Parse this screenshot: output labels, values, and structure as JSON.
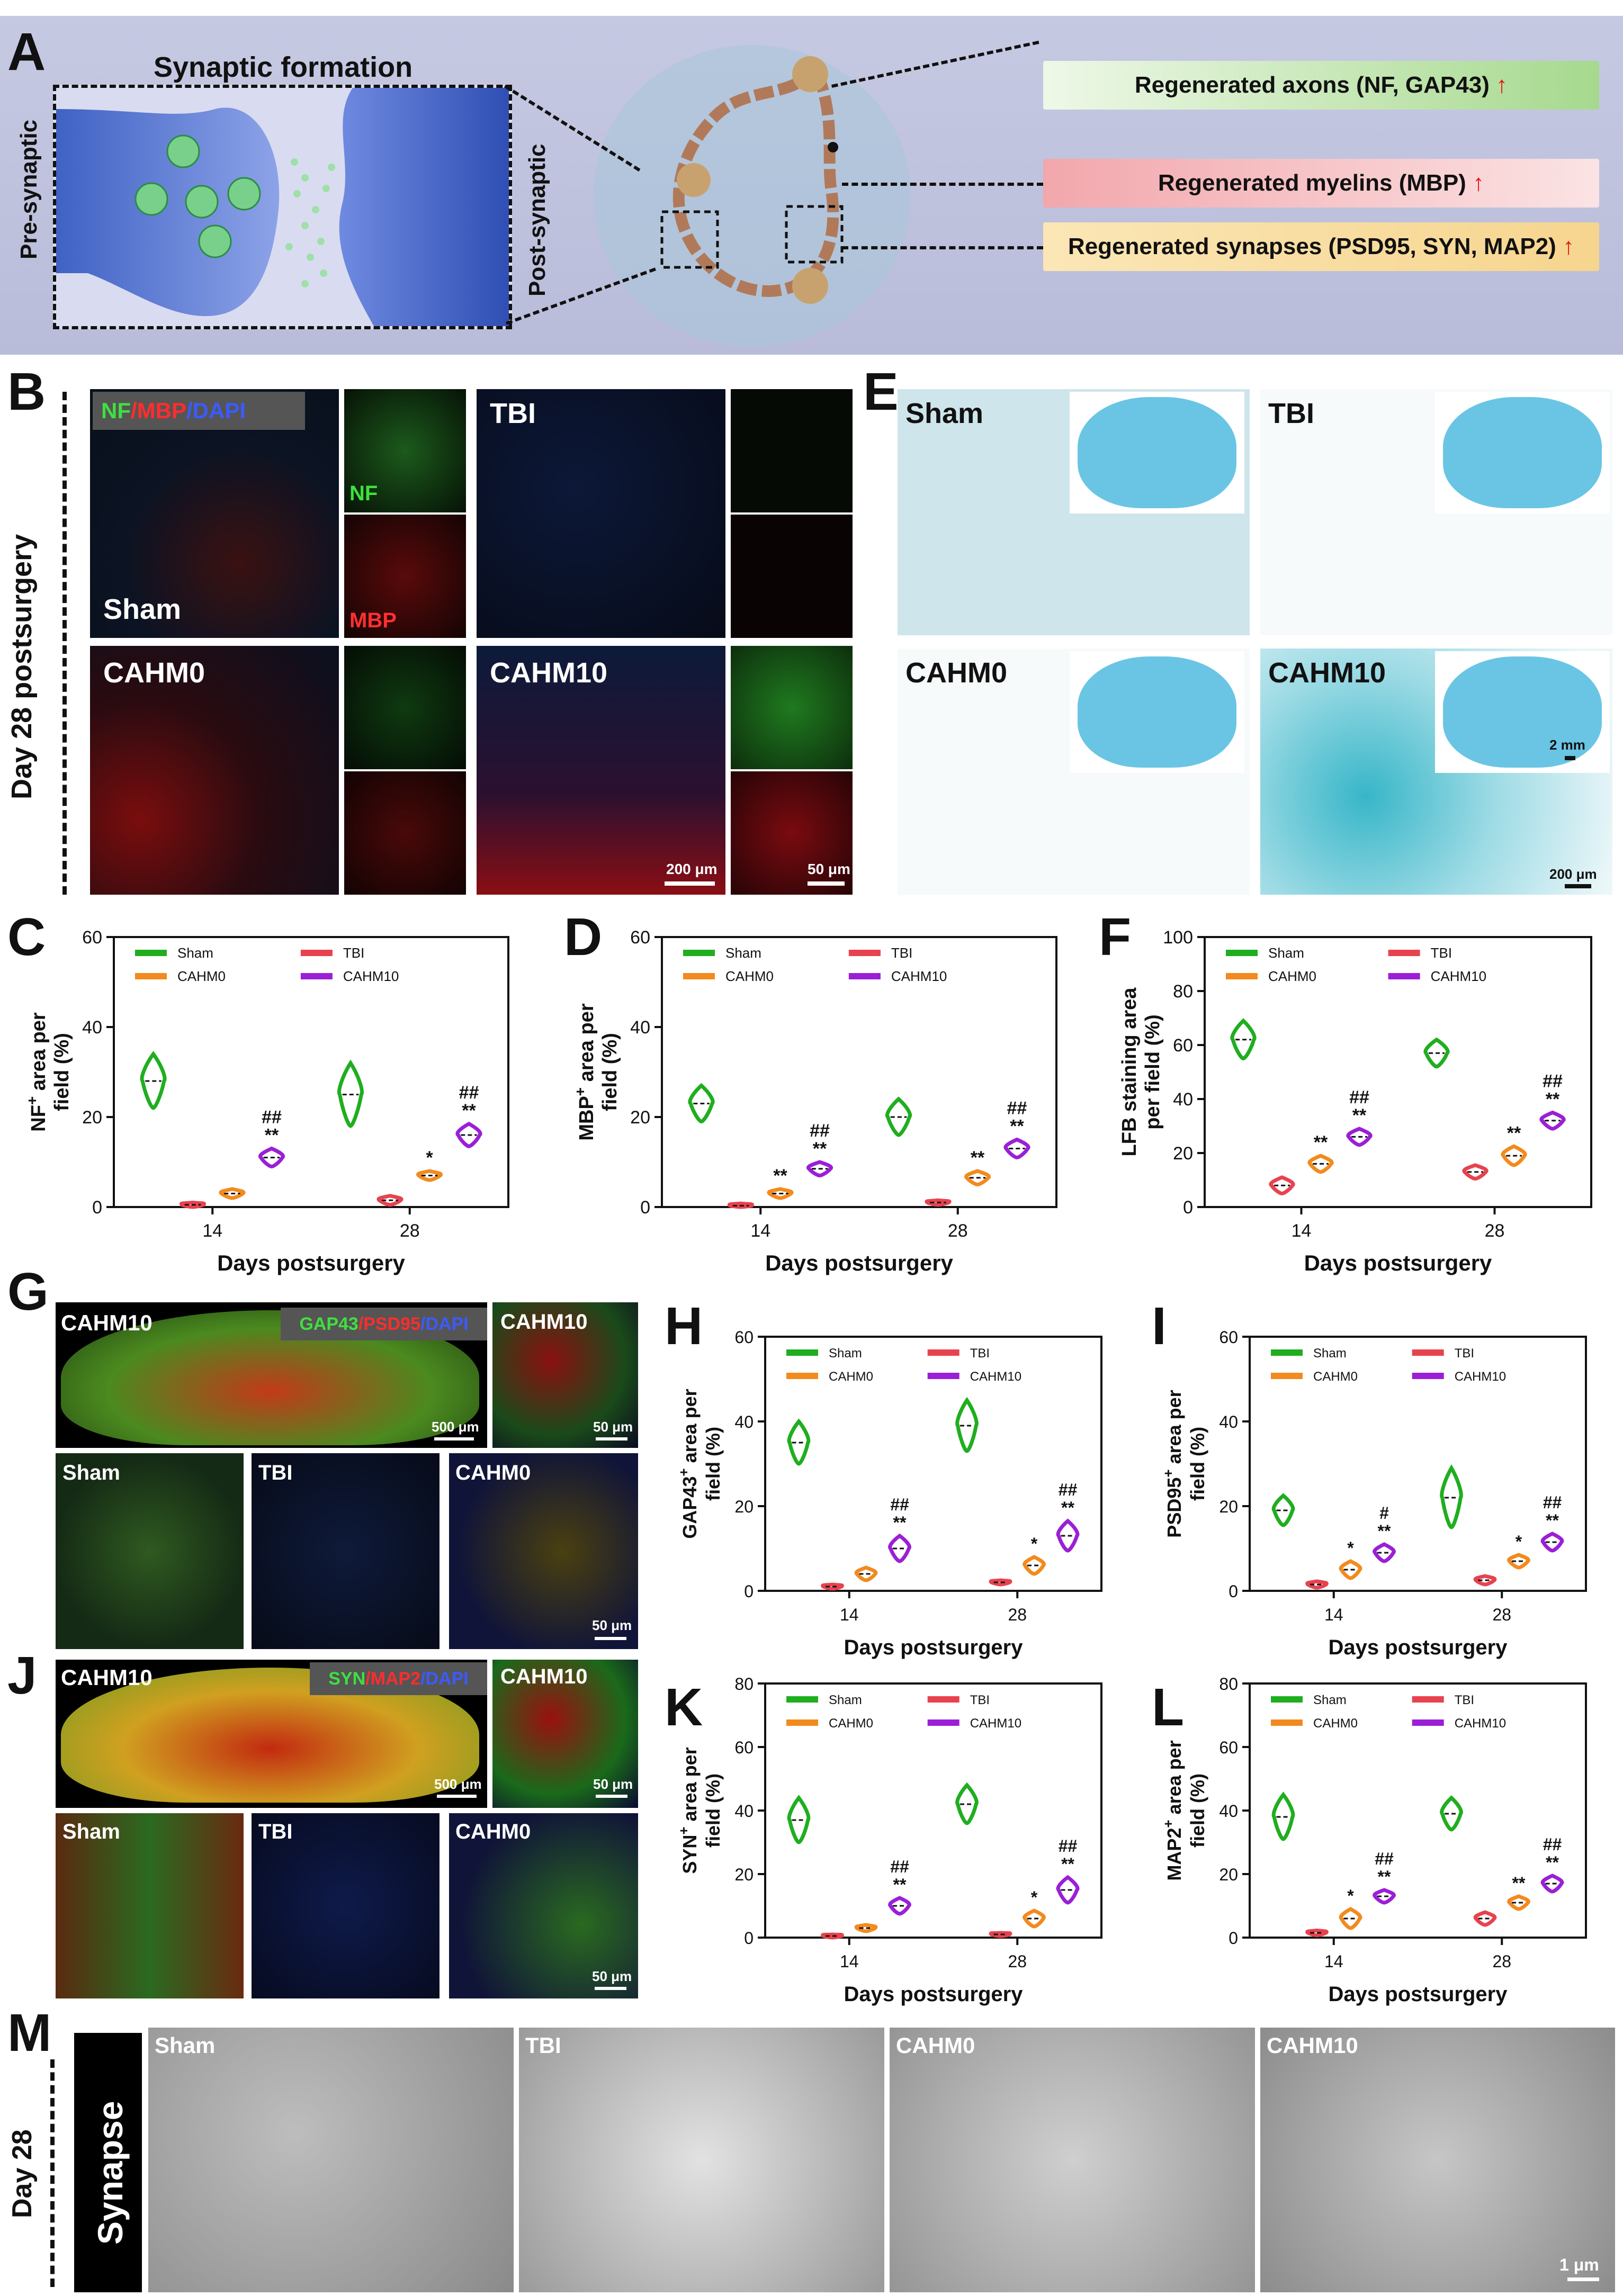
{
  "panels": {
    "A": "A",
    "B": "B",
    "C": "C",
    "D": "D",
    "E": "E",
    "F": "F",
    "G": "G",
    "H": "H",
    "I": "I",
    "J": "J",
    "K": "K",
    "L": "L",
    "M": "M"
  },
  "panelA": {
    "title": "Synaptic formation",
    "pre": "Pre-synaptic",
    "post": "Post-synaptic",
    "boxes": [
      {
        "text": "Regenerated axons (NF, GAP43)",
        "color": "#cfe9c4"
      },
      {
        "text": "Regenerated myelins (MBP)",
        "color": "#f6c7c8"
      },
      {
        "text": "Regenerated synapses (PSD95, SYN, MAP2)",
        "color": "#fbe1ad"
      }
    ],
    "arrow": "↑"
  },
  "panelB": {
    "side_label": "Day 28 postsurgery",
    "stain": {
      "nf": "NF",
      "mbp": "/MBP",
      "dapi": "/DAPI"
    },
    "groups": [
      "Sham",
      "TBI",
      "CAHM0",
      "CAHM10"
    ],
    "inset_nf": "NF",
    "inset_mbp": "MBP",
    "scale_big": "200 μm",
    "scale_small": "50 μm"
  },
  "panelE": {
    "groups": [
      "Sham",
      "TBI",
      "CAHM0",
      "CAHM10"
    ],
    "scale_big": "2 mm",
    "scale_small": "200 μm"
  },
  "panelG": {
    "top": "CAHM10",
    "stain": {
      "a": "GAP43",
      "b": "/PSD95",
      "c": "/DAPI"
    },
    "scale_big": "500 μm",
    "inset": "CAHM10",
    "scale_small": "50 μm",
    "bottom": [
      "Sham",
      "TBI",
      "CAHM0"
    ],
    "scale_bottom": "50 μm"
  },
  "panelJ": {
    "top": "CAHM10",
    "stain": {
      "a": "SYN",
      "b": "/MAP2",
      "c": "/DAPI"
    },
    "scale_big": "500 μm",
    "inset": "CAHM10",
    "scale_small": "50 μm",
    "bottom": [
      "Sham",
      "TBI",
      "CAHM0"
    ],
    "scale_bottom": "50 μm"
  },
  "panelM": {
    "side_day": "Day 28",
    "side_label": "Synapse",
    "groups": [
      "Sham",
      "TBI",
      "CAHM0",
      "CAHM10"
    ],
    "scale": "1 μm"
  },
  "colors": {
    "Sham": "#1fae1f",
    "TBI": "#e8424f",
    "CAHM0": "#f28a1e",
    "CAHM10": "#9b1fd6"
  },
  "chart_data": [
    {
      "id": "C",
      "type": "violin",
      "ylabel_pre": "NF",
      "ylabel_sup": "+",
      "ylabel_post": " area per",
      "ylabel2": "field (%)",
      "xlabel": "Days postsurgery",
      "ylim": [
        0,
        60
      ],
      "yticks": [
        0,
        20,
        40,
        60
      ],
      "categories": [
        "14",
        "28"
      ],
      "legend": [
        "Sham",
        "CAHM0",
        "TBI",
        "CAHM10"
      ],
      "series": [
        {
          "name": "Sham",
          "values": [
            28,
            25
          ],
          "spread": [
            12,
            14
          ]
        },
        {
          "name": "TBI",
          "values": [
            0.5,
            1.5
          ],
          "spread": [
            1,
            2
          ]
        },
        {
          "name": "CAHM0",
          "values": [
            3,
            7
          ],
          "spread": [
            2,
            2
          ]
        },
        {
          "name": "CAHM10",
          "values": [
            11,
            16
          ],
          "spread": [
            4,
            5
          ]
        }
      ],
      "annotations": [
        {
          "cat": 1,
          "series": "CAHM0",
          "text": [
            "*"
          ]
        },
        {
          "cat": 0,
          "series": "CAHM10",
          "text": [
            "##",
            "**"
          ]
        },
        {
          "cat": 1,
          "series": "CAHM10",
          "text": [
            "##",
            "**"
          ]
        }
      ]
    },
    {
      "id": "D",
      "type": "violin",
      "ylabel_pre": "MBP",
      "ylabel_sup": "+",
      "ylabel_post": " area per",
      "ylabel2": "field (%)",
      "xlabel": "Days postsurgery",
      "ylim": [
        0,
        60
      ],
      "yticks": [
        0,
        20,
        40,
        60
      ],
      "categories": [
        "14",
        "28"
      ],
      "legend": [
        "Sham",
        "CAHM0",
        "TBI",
        "CAHM10"
      ],
      "series": [
        {
          "name": "Sham",
          "values": [
            23,
            20
          ],
          "spread": [
            8,
            8
          ]
        },
        {
          "name": "TBI",
          "values": [
            0.3,
            1
          ],
          "spread": [
            1,
            1
          ]
        },
        {
          "name": "CAHM0",
          "values": [
            3,
            6.5
          ],
          "spread": [
            2,
            3
          ]
        },
        {
          "name": "CAHM10",
          "values": [
            8.5,
            13
          ],
          "spread": [
            3,
            4
          ]
        }
      ],
      "annotations": [
        {
          "cat": 0,
          "series": "CAHM0",
          "text": [
            "**"
          ]
        },
        {
          "cat": 1,
          "series": "CAHM0",
          "text": [
            "**"
          ]
        },
        {
          "cat": 0,
          "series": "CAHM10",
          "text": [
            "##",
            "**"
          ]
        },
        {
          "cat": 1,
          "series": "CAHM10",
          "text": [
            "##",
            "**"
          ]
        }
      ]
    },
    {
      "id": "F",
      "type": "violin",
      "ylabel_pre": "LFB staining  area",
      "ylabel_sup": "",
      "ylabel_post": "",
      "ylabel2": "per field (%)",
      "xlabel": "Days postsurgery",
      "ylim": [
        0,
        100
      ],
      "yticks": [
        0,
        20,
        40,
        60,
        80,
        100
      ],
      "categories": [
        "14",
        "28"
      ],
      "legend": [
        "Sham",
        "CAHM0",
        "TBI",
        "CAHM10"
      ],
      "series": [
        {
          "name": "Sham",
          "values": [
            62,
            57
          ],
          "spread": [
            14,
            10
          ]
        },
        {
          "name": "TBI",
          "values": [
            8,
            13
          ],
          "spread": [
            6,
            5
          ]
        },
        {
          "name": "CAHM0",
          "values": [
            16,
            19
          ],
          "spread": [
            6,
            7
          ]
        },
        {
          "name": "CAHM10",
          "values": [
            26,
            32
          ],
          "spread": [
            6,
            6
          ]
        }
      ],
      "annotations": [
        {
          "cat": 0,
          "series": "CAHM0",
          "text": [
            "**"
          ]
        },
        {
          "cat": 1,
          "series": "CAHM0",
          "text": [
            "**"
          ]
        },
        {
          "cat": 0,
          "series": "CAHM10",
          "text": [
            "##",
            "**"
          ]
        },
        {
          "cat": 1,
          "series": "CAHM10",
          "text": [
            "##",
            "**"
          ]
        }
      ]
    },
    {
      "id": "H",
      "type": "violin",
      "ylabel_pre": "GAP43",
      "ylabel_sup": "+",
      "ylabel_post": " area per",
      "ylabel2": "field (%)",
      "xlabel": "Days postsurgery",
      "ylim": [
        0,
        60
      ],
      "yticks": [
        0,
        20,
        40,
        60
      ],
      "categories": [
        "14",
        "28"
      ],
      "legend": [
        "Sham",
        "CAHM0",
        "TBI",
        "CAHM10"
      ],
      "series": [
        {
          "name": "Sham",
          "values": [
            35,
            39
          ],
          "spread": [
            10,
            12
          ]
        },
        {
          "name": "TBI",
          "values": [
            1,
            2
          ],
          "spread": [
            1,
            1
          ]
        },
        {
          "name": "CAHM0",
          "values": [
            4,
            6
          ],
          "spread": [
            3,
            4
          ]
        },
        {
          "name": "CAHM10",
          "values": [
            10,
            13
          ],
          "spread": [
            6,
            7
          ]
        }
      ],
      "annotations": [
        {
          "cat": 1,
          "series": "CAHM0",
          "text": [
            "*"
          ]
        },
        {
          "cat": 0,
          "series": "CAHM10",
          "text": [
            "##",
            "**"
          ]
        },
        {
          "cat": 1,
          "series": "CAHM10",
          "text": [
            "##",
            "**"
          ]
        }
      ]
    },
    {
      "id": "I",
      "type": "violin",
      "ylabel_pre": "PSD95",
      "ylabel_sup": "+",
      "ylabel_post": " area per",
      "ylabel2": "field (%)",
      "xlabel": "Days postsurgery",
      "ylim": [
        0,
        60
      ],
      "yticks": [
        0,
        20,
        40,
        60
      ],
      "categories": [
        "14",
        "28"
      ],
      "legend": [
        "Sham",
        "CAHM0",
        "TBI",
        "CAHM10"
      ],
      "series": [
        {
          "name": "Sham",
          "values": [
            19,
            22
          ],
          "spread": [
            7,
            14
          ]
        },
        {
          "name": "TBI",
          "values": [
            1.5,
            2.5
          ],
          "spread": [
            1.5,
            2
          ]
        },
        {
          "name": "CAHM0",
          "values": [
            5,
            7
          ],
          "spread": [
            4,
            3
          ]
        },
        {
          "name": "CAHM10",
          "values": [
            9,
            11.5
          ],
          "spread": [
            4,
            4
          ]
        }
      ],
      "annotations": [
        {
          "cat": 0,
          "series": "CAHM0",
          "text": [
            "*"
          ]
        },
        {
          "cat": 1,
          "series": "CAHM0",
          "text": [
            "*"
          ]
        },
        {
          "cat": 0,
          "series": "CAHM10",
          "text": [
            "#",
            "**"
          ]
        },
        {
          "cat": 1,
          "series": "CAHM10",
          "text": [
            "##",
            "**"
          ]
        }
      ]
    },
    {
      "id": "K",
      "type": "violin",
      "ylabel_pre": "SYN",
      "ylabel_sup": "+",
      "ylabel_post": " area per",
      "ylabel2": "field (%)",
      "xlabel": "Days postsurgery",
      "ylim": [
        0,
        80
      ],
      "yticks": [
        0,
        20,
        40,
        60,
        80
      ],
      "categories": [
        "14",
        "28"
      ],
      "legend": [
        "Sham",
        "CAHM0",
        "TBI",
        "CAHM10"
      ],
      "series": [
        {
          "name": "Sham",
          "values": [
            37,
            42
          ],
          "spread": [
            14,
            12
          ]
        },
        {
          "name": "TBI",
          "values": [
            0.5,
            1
          ],
          "spread": [
            1,
            1
          ]
        },
        {
          "name": "CAHM0",
          "values": [
            3,
            6
          ],
          "spread": [
            2,
            5
          ]
        },
        {
          "name": "CAHM10",
          "values": [
            10,
            15
          ],
          "spread": [
            5,
            8
          ]
        }
      ],
      "annotations": [
        {
          "cat": 1,
          "series": "CAHM0",
          "text": [
            "*"
          ]
        },
        {
          "cat": 0,
          "series": "CAHM10",
          "text": [
            "##",
            "**"
          ]
        },
        {
          "cat": 1,
          "series": "CAHM10",
          "text": [
            "##",
            "**"
          ]
        }
      ]
    },
    {
      "id": "L",
      "type": "violin",
      "ylabel_pre": "MAP2",
      "ylabel_sup": "+",
      "ylabel_post": " area per",
      "ylabel2": "field (%)",
      "xlabel": "Days postsurgery",
      "ylim": [
        0,
        80
      ],
      "yticks": [
        0,
        20,
        40,
        60,
        80
      ],
      "categories": [
        "14",
        "28"
      ],
      "legend": [
        "Sham",
        "CAHM0",
        "TBI",
        "CAHM10"
      ],
      "series": [
        {
          "name": "Sham",
          "values": [
            38,
            39
          ],
          "spread": [
            14,
            10
          ]
        },
        {
          "name": "TBI",
          "values": [
            1.5,
            6
          ],
          "spread": [
            1.5,
            4
          ]
        },
        {
          "name": "CAHM0",
          "values": [
            6,
            11
          ],
          "spread": [
            6,
            4
          ]
        },
        {
          "name": "CAHM10",
          "values": [
            13,
            17
          ],
          "spread": [
            4,
            5
          ]
        }
      ],
      "annotations": [
        {
          "cat": 0,
          "series": "CAHM0",
          "text": [
            "*"
          ]
        },
        {
          "cat": 1,
          "series": "CAHM0",
          "text": [
            "**"
          ]
        },
        {
          "cat": 0,
          "series": "CAHM10",
          "text": [
            "##",
            "**"
          ]
        },
        {
          "cat": 1,
          "series": "CAHM10",
          "text": [
            "##",
            "**"
          ]
        }
      ]
    }
  ]
}
